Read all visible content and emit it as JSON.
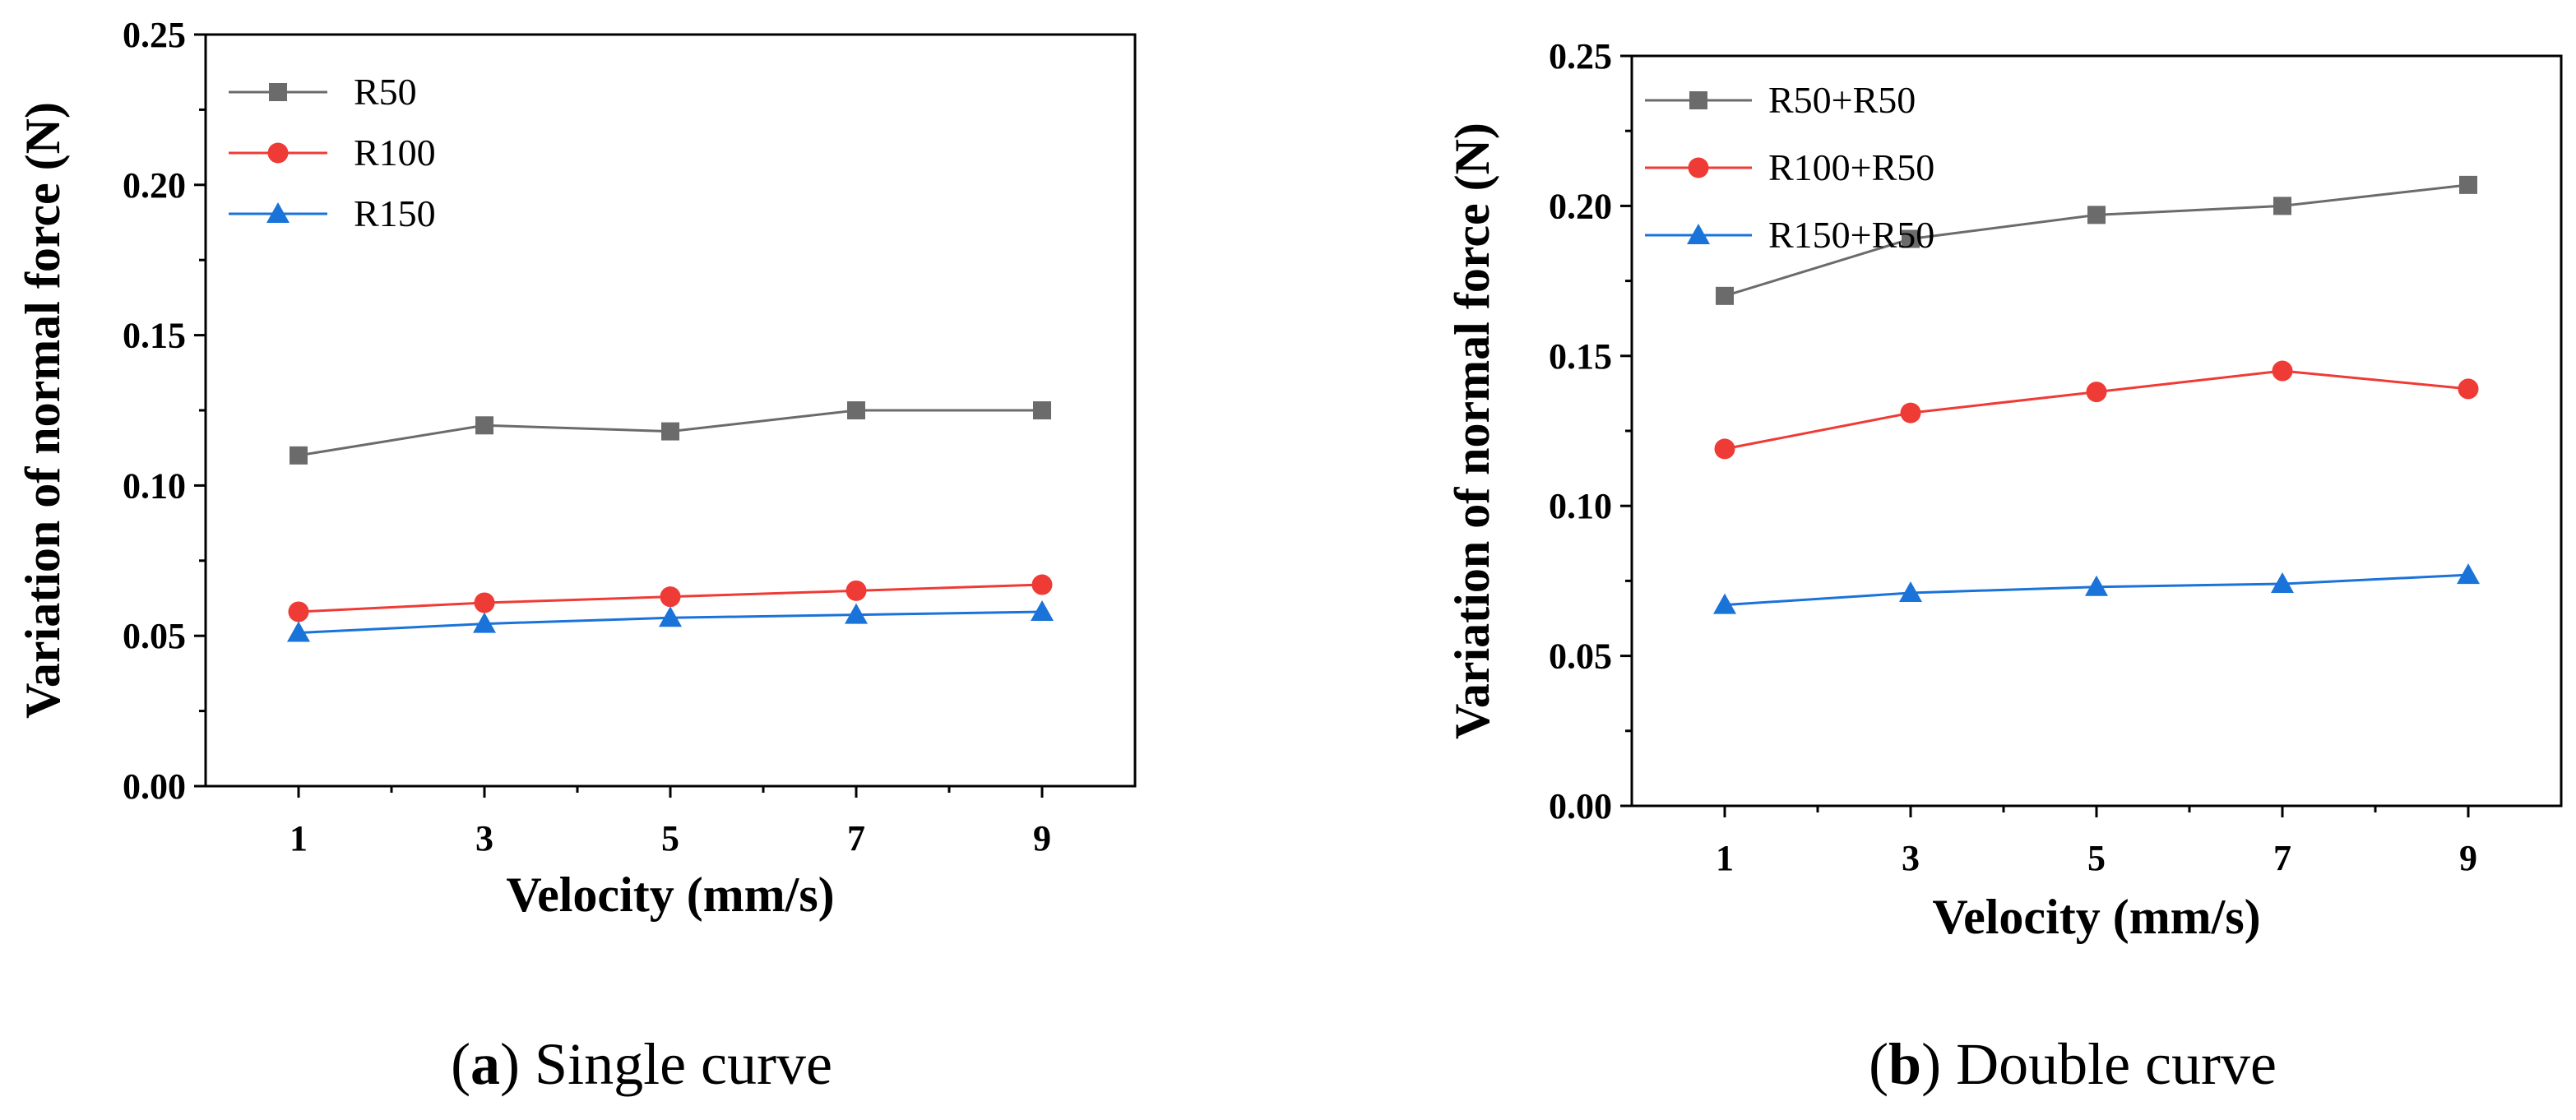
{
  "chart_data": [
    {
      "type": "line",
      "caption_letter": "a",
      "caption_text": "Single curve",
      "xlabel": "Velocity (mm/s)",
      "ylabel": "Variation of normal force (N)",
      "x": [
        1,
        3,
        5,
        7,
        9
      ],
      "x_ticks": [
        "1",
        "3",
        "5",
        "7",
        "9"
      ],
      "xlim": [
        0,
        10
      ],
      "ylim": [
        0,
        0.25
      ],
      "y_ticks": [
        "0.00",
        "0.05",
        "0.10",
        "0.15",
        "0.20",
        "0.25"
      ],
      "legend_position": "top-left",
      "grid": false,
      "series": [
        {
          "name": "R50",
          "marker": "square",
          "color": "#6b6b6b",
          "values": [
            0.11,
            0.12,
            0.118,
            0.125,
            0.125
          ]
        },
        {
          "name": "R100",
          "marker": "circle",
          "color": "#ef3b36",
          "values": [
            0.058,
            0.061,
            0.063,
            0.065,
            0.067
          ]
        },
        {
          "name": "R150",
          "marker": "triangle",
          "color": "#1a73d9",
          "values": [
            0.051,
            0.054,
            0.056,
            0.057,
            0.058
          ]
        }
      ]
    },
    {
      "type": "line",
      "caption_letter": "b",
      "caption_text": "Double curve",
      "xlabel": "Velocity (mm/s)",
      "ylabel": "Variation of normal force (N)",
      "x": [
        1,
        3,
        5,
        7,
        9
      ],
      "x_ticks": [
        "1",
        "3",
        "5",
        "7",
        "9"
      ],
      "xlim": [
        0,
        10
      ],
      "ylim": [
        0,
        0.25
      ],
      "y_ticks": [
        "0.00",
        "0.05",
        "0.10",
        "0.15",
        "0.20",
        "0.25"
      ],
      "legend_position": "top-left",
      "grid": false,
      "series": [
        {
          "name": "R50+R50",
          "marker": "square",
          "color": "#6b6b6b",
          "values": [
            0.17,
            0.189,
            0.197,
            0.2,
            0.207
          ]
        },
        {
          "name": "R100+R50",
          "marker": "circle",
          "color": "#ef3b36",
          "values": [
            0.119,
            0.131,
            0.138,
            0.145,
            0.139
          ]
        },
        {
          "name": "R150+R50",
          "marker": "triangle",
          "color": "#1a73d9",
          "values": [
            0.067,
            0.071,
            0.073,
            0.074,
            0.077
          ]
        }
      ]
    }
  ]
}
